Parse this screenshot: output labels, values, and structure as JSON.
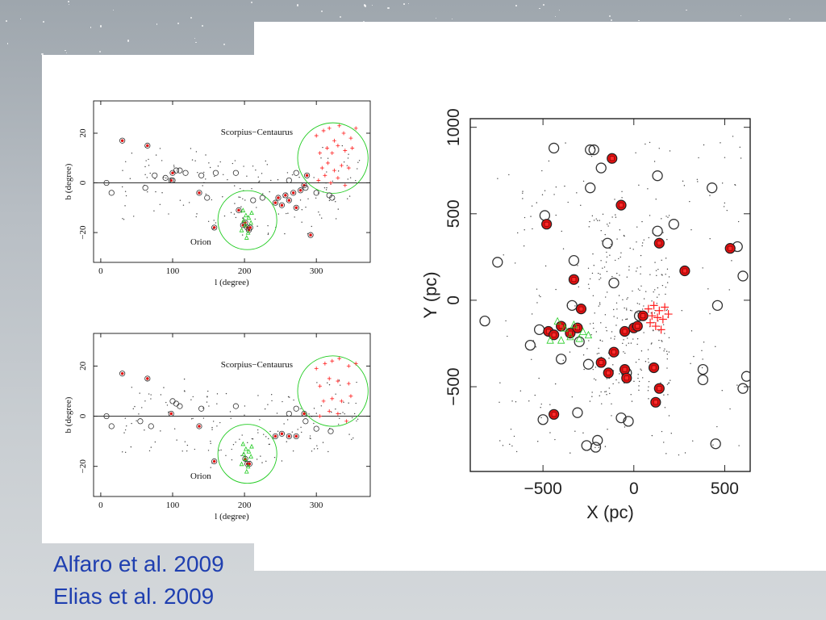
{
  "citations": [
    "Alfaro et al. 2009",
    "Elias et al. 2009"
  ],
  "chart_data": [
    {
      "type": "scatter",
      "xlabel": "l (degree)",
      "ylabel": "b (degree)",
      "xlim": [
        -10,
        375
      ],
      "ylim": [
        -32,
        33
      ],
      "xticks": [
        0,
        100,
        200,
        300
      ],
      "yticks": [
        -20,
        0,
        20
      ],
      "annotations": [
        "Scorpius−Centaurus",
        "Orion"
      ],
      "reference_line_b": 0,
      "regions": [
        {
          "label": "Scorpius−Centaurus",
          "l": 323,
          "b": 10,
          "r_deg": 49,
          "color": "#22cc22"
        },
        {
          "label": "Orion",
          "l": 204,
          "b": -15,
          "r_deg": 41,
          "color": "#22cc22"
        }
      ],
      "series": [
        {
          "marker": "circle-red-dot",
          "points": [
            [
              30,
              17
            ],
            [
              65,
              15
            ],
            [
              98,
              1
            ],
            [
              100,
              4
            ],
            [
              137,
              -4
            ],
            [
              158,
              -18
            ],
            [
              192,
              -11
            ],
            [
              198,
              -17
            ],
            [
              201,
              -16
            ],
            [
              204,
              -18
            ],
            [
              206,
              -19
            ],
            [
              208,
              -18
            ],
            [
              243,
              -8
            ],
            [
              247,
              -6
            ],
            [
              252,
              -9
            ],
            [
              257,
              -5
            ],
            [
              262,
              -7
            ],
            [
              268,
              -4
            ],
            [
              272,
              -10
            ],
            [
              278,
              -3
            ],
            [
              283,
              -1
            ],
            [
              287,
              3
            ],
            [
              292,
              -21
            ]
          ]
        },
        {
          "marker": "open-circle",
          "points": [
            [
              8,
              0
            ],
            [
              15,
              -4
            ],
            [
              62,
              -2
            ],
            [
              75,
              3
            ],
            [
              90,
              2
            ],
            [
              100,
              1
            ],
            [
              105,
              5
            ],
            [
              110,
              5
            ],
            [
              118,
              4
            ],
            [
              140,
              3
            ],
            [
              148,
              -6
            ],
            [
              160,
              4
            ],
            [
              188,
              4
            ],
            [
              212,
              -7
            ],
            [
              225,
              -6
            ],
            [
              262,
              1
            ],
            [
              272,
              4
            ],
            [
              285,
              -2
            ],
            [
              300,
              -4
            ],
            [
              318,
              -5
            ],
            [
              322,
              -6
            ]
          ]
        },
        {
          "marker": "plus-red",
          "points": [
            [
              300,
              19
            ],
            [
              310,
              21
            ],
            [
              318,
              22
            ],
            [
              325,
              17
            ],
            [
              332,
              23
            ],
            [
              338,
              20
            ],
            [
              348,
              18
            ],
            [
              355,
              22
            ],
            [
              305,
              12
            ],
            [
              315,
              14
            ],
            [
              322,
              12
            ],
            [
              330,
              15
            ],
            [
              340,
              13
            ],
            [
              350,
              14
            ],
            [
              308,
              6
            ],
            [
              316,
              8
            ],
            [
              325,
              5
            ],
            [
              335,
              7
            ],
            [
              345,
              6
            ],
            [
              303,
              1
            ],
            [
              312,
              3
            ],
            [
              320,
              0
            ],
            [
              330,
              2
            ],
            [
              340,
              -1
            ]
          ]
        },
        {
          "marker": "triangle-green",
          "points": [
            [
              198,
              -11
            ],
            [
              202,
              -13
            ],
            [
              206,
              -14
            ],
            [
              201,
              -17
            ],
            [
              205,
              -20
            ],
            [
              199,
              -15
            ],
            [
              203,
              -22
            ],
            [
              209,
              -16
            ],
            [
              196,
              -19
            ],
            [
              210,
              -12
            ]
          ]
        }
      ]
    },
    {
      "type": "scatter",
      "xlabel": "l (degree)",
      "ylabel": "b (degree)",
      "xlim": [
        -10,
        375
      ],
      "ylim": [
        -32,
        33
      ],
      "xticks": [
        0,
        100,
        200,
        300
      ],
      "yticks": [
        -20,
        0,
        20
      ],
      "annotations": [
        "Scorpius−Centaurus",
        "Orion"
      ],
      "reference_line_b": 0,
      "regions": [
        {
          "label": "Scorpius−Centaurus",
          "l": 323,
          "b": 10,
          "r_deg": 49,
          "color": "#22cc22"
        },
        {
          "label": "Orion",
          "l": 204,
          "b": -15,
          "r_deg": 41,
          "color": "#22cc22"
        }
      ],
      "series": [
        {
          "marker": "circle-red-dot",
          "points": [
            [
              30,
              17
            ],
            [
              65,
              15
            ],
            [
              98,
              1
            ],
            [
              137,
              -4
            ],
            [
              158,
              -18
            ],
            [
              201,
              -17
            ],
            [
              204,
              -19
            ],
            [
              207,
              -19
            ],
            [
              243,
              -8
            ],
            [
              252,
              -7
            ],
            [
              262,
              -8
            ],
            [
              272,
              -8
            ],
            [
              283,
              1
            ]
          ]
        },
        {
          "marker": "open-circle",
          "points": [
            [
              8,
              0
            ],
            [
              15,
              -4
            ],
            [
              55,
              -2
            ],
            [
              70,
              -4
            ],
            [
              100,
              6
            ],
            [
              105,
              5
            ],
            [
              110,
              4
            ],
            [
              140,
              3
            ],
            [
              188,
              4
            ],
            [
              262,
              1
            ],
            [
              272,
              3
            ],
            [
              285,
              -2
            ],
            [
              300,
              -5
            ],
            [
              320,
              -6
            ]
          ]
        },
        {
          "marker": "plus-red",
          "points": [
            [
              300,
              19
            ],
            [
              312,
              21
            ],
            [
              322,
              22
            ],
            [
              332,
              23
            ],
            [
              345,
              20
            ],
            [
              355,
              21
            ],
            [
              305,
              12
            ],
            [
              318,
              15
            ],
            [
              330,
              14
            ],
            [
              345,
              13
            ],
            [
              310,
              6
            ],
            [
              322,
              7
            ],
            [
              335,
              6
            ],
            [
              348,
              8
            ],
            [
              305,
              0
            ],
            [
              318,
              2
            ],
            [
              330,
              1
            ],
            [
              342,
              -2
            ]
          ]
        },
        {
          "marker": "triangle-green",
          "points": [
            [
              198,
              -11
            ],
            [
              202,
              -13
            ],
            [
              206,
              -14
            ],
            [
              201,
              -17
            ],
            [
              205,
              -20
            ],
            [
              199,
              -15
            ],
            [
              203,
              -22
            ],
            [
              209,
              -16
            ],
            [
              196,
              -19
            ],
            [
              210,
              -12
            ]
          ]
        }
      ]
    },
    {
      "type": "scatter",
      "xlabel": "X (pc)",
      "ylabel": "Y (pc)",
      "xlim": [
        -900,
        640
      ],
      "ylim": [
        -990,
        1050
      ],
      "xticks": [
        -500,
        0,
        500
      ],
      "yticks": [
        -500,
        0,
        500,
        1000
      ],
      "series": [
        {
          "marker": "open-circle",
          "points": [
            [
              -440,
              880
            ],
            [
              -240,
              870
            ],
            [
              -220,
              870
            ],
            [
              -180,
              765
            ],
            [
              -240,
              650
            ],
            [
              -490,
              490
            ],
            [
              -330,
              230
            ],
            [
              -145,
              330
            ],
            [
              -750,
              220
            ],
            [
              -340,
              -30
            ],
            [
              -820,
              -120
            ],
            [
              -570,
              -260
            ],
            [
              -300,
              -240
            ],
            [
              -250,
              -370
            ],
            [
              -400,
              -340
            ],
            [
              -310,
              -650
            ],
            [
              -500,
              -690
            ],
            [
              -200,
              -810
            ],
            [
              -260,
              -840
            ],
            [
              -210,
              -850
            ],
            [
              -70,
              -680
            ],
            [
              -30,
              -700
            ],
            [
              -40,
              -420
            ],
            [
              -110,
              100
            ],
            [
              -520,
              -170
            ],
            [
              30,
              -90
            ],
            [
              130,
              400
            ],
            [
              130,
              720
            ],
            [
              220,
              440
            ],
            [
              380,
              -400
            ],
            [
              380,
              -460
            ],
            [
              430,
              650
            ],
            [
              460,
              -30
            ],
            [
              570,
              310
            ],
            [
              600,
              140
            ],
            [
              600,
              -510
            ],
            [
              620,
              -440
            ],
            [
              450,
              -830
            ]
          ]
        },
        {
          "marker": "circle-red-fill",
          "points": [
            [
              -120,
              820
            ],
            [
              -70,
              550
            ],
            [
              -480,
              440
            ],
            [
              -330,
              120
            ],
            [
              -290,
              -50
            ],
            [
              -470,
              -180
            ],
            [
              -400,
              -150
            ],
            [
              -440,
              -200
            ],
            [
              -350,
              -190
            ],
            [
              -310,
              -160
            ],
            [
              -50,
              -180
            ],
            [
              0,
              -160
            ],
            [
              20,
              -150
            ],
            [
              50,
              -90
            ],
            [
              140,
              330
            ],
            [
              280,
              170
            ],
            [
              530,
              300
            ],
            [
              -110,
              -300
            ],
            [
              -180,
              -360
            ],
            [
              -140,
              -420
            ],
            [
              -50,
              -400
            ],
            [
              -40,
              -450
            ],
            [
              110,
              -390
            ],
            [
              140,
              -510
            ],
            [
              120,
              -590
            ],
            [
              -440,
              -660
            ]
          ]
        },
        {
          "marker": "plus-red",
          "points": [
            [
              80,
              -50
            ],
            [
              110,
              -30
            ],
            [
              140,
              -60
            ],
            [
              170,
              -40
            ],
            [
              100,
              -90
            ],
            [
              130,
              -100
            ],
            [
              160,
              -110
            ],
            [
              190,
              -80
            ],
            [
              90,
              -130
            ],
            [
              120,
              -150
            ],
            [
              150,
              -170
            ]
          ]
        },
        {
          "marker": "triangle-green",
          "points": [
            [
              -420,
              -120
            ],
            [
              -380,
              -160
            ],
            [
              -350,
              -210
            ],
            [
              -330,
              -140
            ],
            [
              -460,
              -230
            ],
            [
              -400,
              -230
            ],
            [
              -300,
              -220
            ],
            [
              -280,
              -180
            ],
            [
              -250,
              -200
            ]
          ]
        }
      ]
    }
  ]
}
